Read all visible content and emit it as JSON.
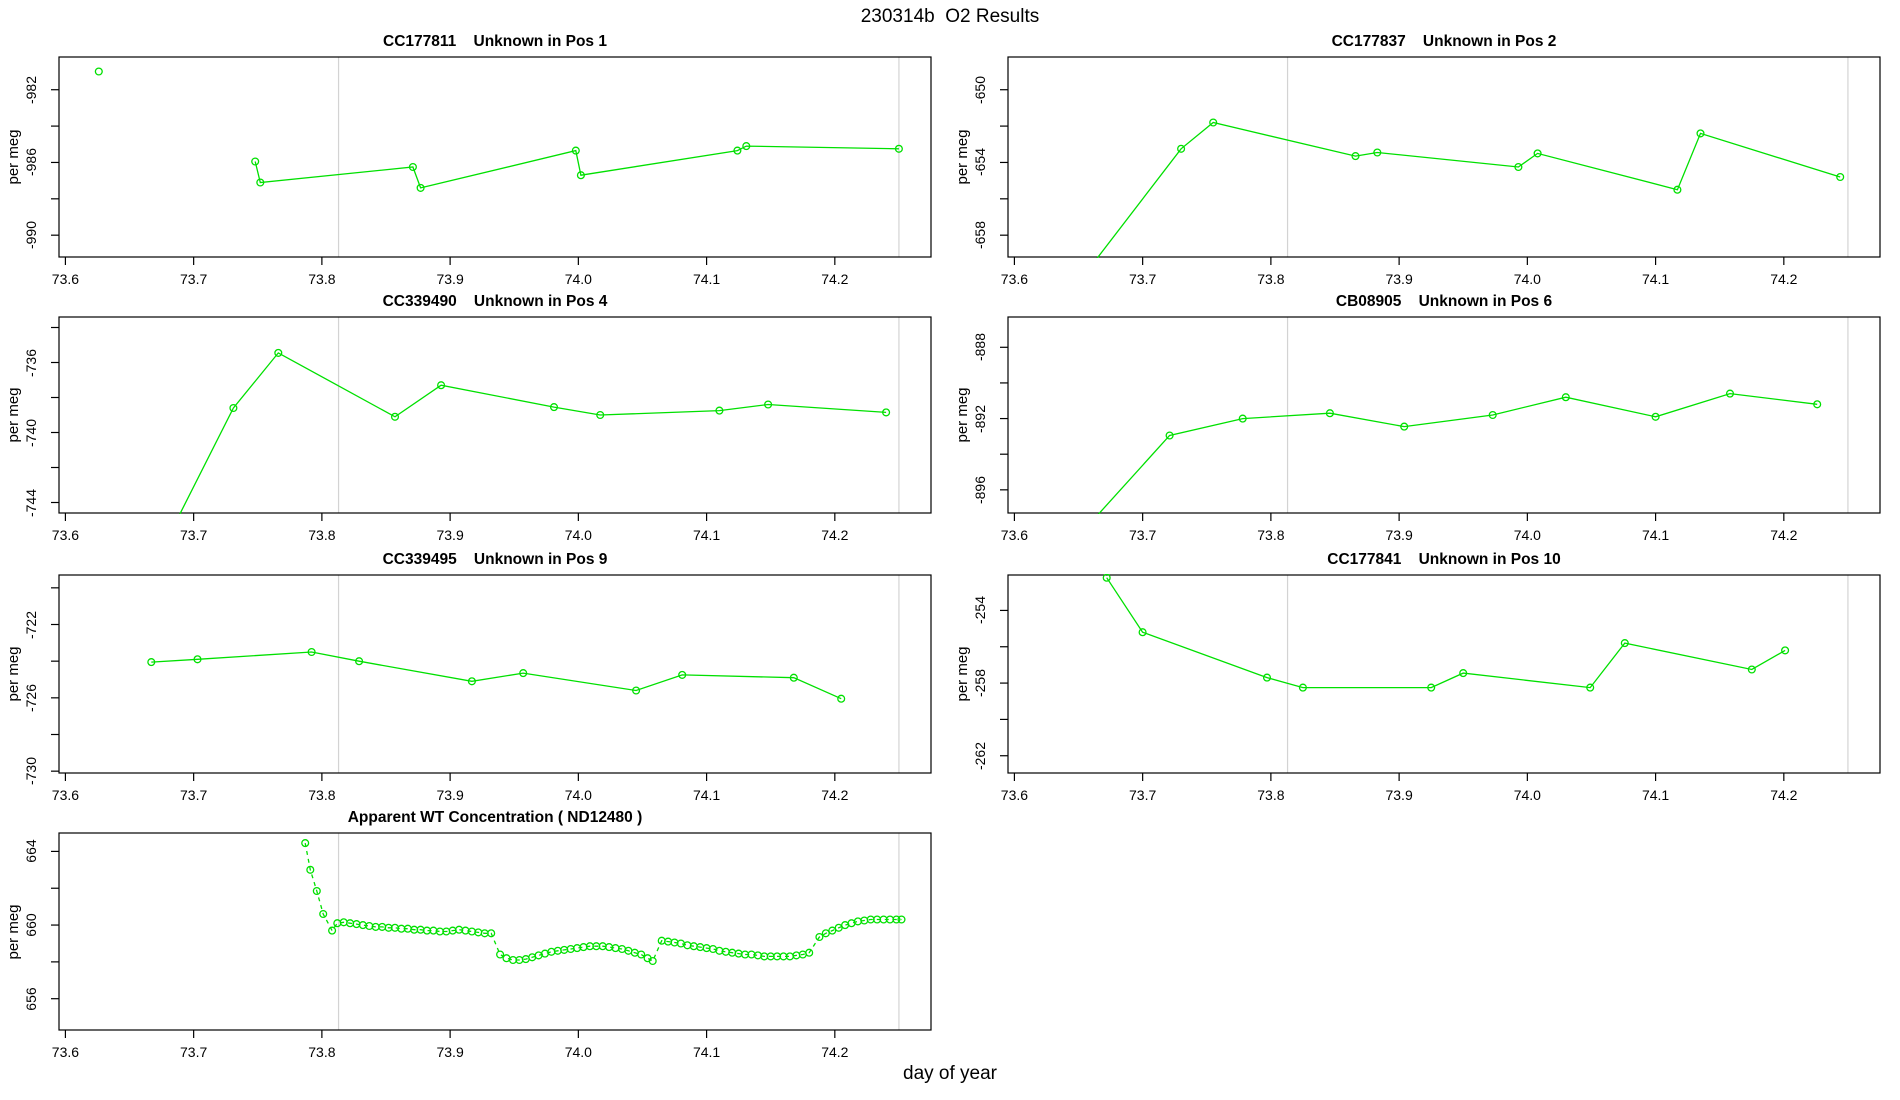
{
  "figure": {
    "title": "230314b  O2 Results",
    "xlabel": "day of year"
  },
  "colors": {
    "series_green": "#00e000",
    "reference_line": "#d3d3d3",
    "axis": "#000000",
    "background": "#ffffff"
  },
  "chart_data": [
    {
      "type": "line",
      "title": "CC177811    Unknown in Pos 1",
      "sample_id": "CC177811",
      "position": "Pos 1",
      "ylabel": "per meg",
      "xlim": [
        73.595,
        74.275
      ],
      "ylim": [
        -991.2,
        -980.2
      ],
      "x_tick_values": [
        73.6,
        73.7,
        73.8,
        73.9,
        74.0,
        74.1,
        74.2
      ],
      "x_tick_labels": [
        "73.6",
        "73.7",
        "73.8",
        "73.9",
        "74.0",
        "74.1",
        "74.2"
      ],
      "y_tick_step": 2,
      "y_tick_labels": [
        -990,
        -986,
        -982
      ],
      "vlines": [
        73.813,
        74.25
      ],
      "dashed": false,
      "isolated_points": [
        [
          73.626,
          -981.0
        ]
      ],
      "points": [
        [
          73.748,
          -985.95
        ],
        [
          73.752,
          -987.1
        ],
        [
          73.871,
          -986.25
        ],
        [
          73.877,
          -987.4
        ],
        [
          73.998,
          -985.35
        ],
        [
          74.002,
          -986.7
        ],
        [
          74.124,
          -985.35
        ],
        [
          74.131,
          -985.1
        ],
        [
          74.25,
          -985.25
        ]
      ]
    },
    {
      "type": "line",
      "title": "CC177837    Unknown in Pos 2",
      "sample_id": "CC177837",
      "position": "Pos 2",
      "ylabel": "per meg",
      "xlim": [
        73.595,
        74.275
      ],
      "ylim": [
        -659.2,
        -648.2
      ],
      "x_tick_values": [
        73.6,
        73.7,
        73.8,
        73.9,
        74.0,
        74.1,
        74.2
      ],
      "x_tick_labels": [
        "73.6",
        "73.7",
        "73.8",
        "73.9",
        "74.0",
        "74.1",
        "74.2"
      ],
      "y_tick_step": 2,
      "y_tick_labels": [
        -658,
        -654,
        -650
      ],
      "vlines": [
        73.813,
        74.25
      ],
      "dashed": false,
      "isolated_points": [],
      "points": [
        [
          73.65,
          -660.6
        ],
        [
          73.73,
          -653.25
        ],
        [
          73.755,
          -651.8
        ],
        [
          73.866,
          -653.65
        ],
        [
          73.883,
          -653.45
        ],
        [
          73.993,
          -654.25
        ],
        [
          74.008,
          -653.5
        ],
        [
          74.117,
          -655.5
        ],
        [
          74.135,
          -652.4
        ],
        [
          74.244,
          -654.8
        ]
      ]
    },
    {
      "type": "line",
      "title": "CC339490    Unknown in Pos 4",
      "sample_id": "CC339490",
      "position": "Pos 4",
      "ylabel": "per meg",
      "xlim": [
        73.595,
        74.275
      ],
      "ylim": [
        -744.6,
        -733.4
      ],
      "x_tick_values": [
        73.6,
        73.7,
        73.8,
        73.9,
        74.0,
        74.1,
        74.2
      ],
      "x_tick_labels": [
        "73.6",
        "73.7",
        "73.8",
        "73.9",
        "74.0",
        "74.1",
        "74.2"
      ],
      "y_tick_step": 2,
      "y_tick_labels": [
        -744,
        -740,
        -736
      ],
      "vlines": [
        73.813,
        74.25
      ],
      "dashed": false,
      "isolated_points": [],
      "points": [
        [
          73.68,
          -746.0
        ],
        [
          73.731,
          -738.6
        ],
        [
          73.766,
          -735.45
        ],
        [
          73.857,
          -739.1
        ],
        [
          73.893,
          -737.3
        ],
        [
          73.981,
          -738.55
        ],
        [
          74.017,
          -739.0
        ],
        [
          74.11,
          -738.75
        ],
        [
          74.148,
          -738.4
        ],
        [
          74.24,
          -738.85
        ]
      ]
    },
    {
      "type": "line",
      "title": "CB08905    Unknown in Pos 6",
      "sample_id": "CB08905",
      "position": "Pos 6",
      "ylabel": "per meg",
      "xlim": [
        73.595,
        74.275
      ],
      "ylim": [
        -897.3,
        -886.3
      ],
      "x_tick_values": [
        73.6,
        73.7,
        73.8,
        73.9,
        74.0,
        74.1,
        74.2
      ],
      "x_tick_labels": [
        "73.6",
        "73.7",
        "73.8",
        "73.9",
        "74.0",
        "74.1",
        "74.2"
      ],
      "y_tick_step": 2,
      "y_tick_labels": [
        -896,
        -892,
        -888
      ],
      "vlines": [
        73.813,
        74.25
      ],
      "dashed": false,
      "isolated_points": [],
      "points": [
        [
          73.65,
          -898.6
        ],
        [
          73.721,
          -892.95
        ],
        [
          73.778,
          -892.0
        ],
        [
          73.846,
          -891.7
        ],
        [
          73.904,
          -892.45
        ],
        [
          73.973,
          -891.8
        ],
        [
          74.03,
          -890.8
        ],
        [
          74.1,
          -891.9
        ],
        [
          74.158,
          -890.6
        ],
        [
          74.226,
          -891.2
        ]
      ]
    },
    {
      "type": "line",
      "title": "CC339495    Unknown in Pos 9",
      "sample_id": "CC339495",
      "position": "Pos 9",
      "ylabel": "per meg",
      "xlim": [
        73.595,
        74.275
      ],
      "ylim": [
        -730.1,
        -719.3
      ],
      "x_tick_values": [
        73.6,
        73.7,
        73.8,
        73.9,
        74.0,
        74.1,
        74.2
      ],
      "x_tick_labels": [
        "73.6",
        "73.7",
        "73.8",
        "73.9",
        "74.0",
        "74.1",
        "74.2"
      ],
      "y_tick_step": 2,
      "y_tick_labels": [
        -730,
        -726,
        -722
      ],
      "vlines": [
        73.813,
        74.25
      ],
      "dashed": false,
      "isolated_points": [],
      "points": [
        [
          73.667,
          -724.05
        ],
        [
          73.703,
          -723.9
        ],
        [
          73.792,
          -723.5
        ],
        [
          73.829,
          -724.0
        ],
        [
          73.917,
          -725.1
        ],
        [
          73.957,
          -724.65
        ],
        [
          74.045,
          -725.6
        ],
        [
          74.081,
          -724.75
        ],
        [
          74.168,
          -724.9
        ],
        [
          74.205,
          -726.05
        ]
      ]
    },
    {
      "type": "line",
      "title": "CC177841    Unknown in Pos 10",
      "sample_id": "CC177841",
      "position": "Pos 10",
      "ylabel": "per meg",
      "xlim": [
        73.595,
        74.275
      ],
      "ylim": [
        -262.95,
        -252.05
      ],
      "x_tick_values": [
        73.6,
        73.7,
        73.8,
        73.9,
        74.0,
        74.1,
        74.2
      ],
      "x_tick_labels": [
        "73.6",
        "73.7",
        "73.8",
        "73.9",
        "74.0",
        "74.1",
        "74.2"
      ],
      "y_tick_step": 2,
      "y_tick_labels": [
        -262,
        -258,
        -254
      ],
      "vlines": [
        73.813,
        74.25
      ],
      "dashed": false,
      "isolated_points": [],
      "points": [
        [
          73.672,
          -252.2
        ],
        [
          73.7,
          -255.2
        ],
        [
          73.797,
          -257.7
        ],
        [
          73.825,
          -258.25
        ],
        [
          73.925,
          -258.25
        ],
        [
          73.95,
          -257.45
        ],
        [
          74.049,
          -258.25
        ],
        [
          74.076,
          -255.8
        ],
        [
          74.175,
          -257.25
        ],
        [
          74.201,
          -256.2
        ]
      ]
    },
    {
      "type": "line",
      "title": "Apparent WT Concentration ( ND12480 )",
      "sample_id": "ND12480",
      "position": "WT",
      "ylabel": "per meg",
      "xlim": [
        73.595,
        74.275
      ],
      "ylim": [
        654.3,
        665.0
      ],
      "x_tick_values": [
        73.6,
        73.7,
        73.8,
        73.9,
        74.0,
        74.1,
        74.2
      ],
      "x_tick_labels": [
        "73.6",
        "73.7",
        "73.8",
        "73.9",
        "74.0",
        "74.1",
        "74.2"
      ],
      "y_tick_step": 2,
      "y_tick_labels": [
        656,
        660,
        664
      ],
      "vlines": [
        73.813,
        74.25
      ],
      "dashed": true,
      "isolated_points": [],
      "points": [
        [
          73.787,
          664.45
        ],
        [
          73.791,
          663.0
        ],
        [
          73.796,
          661.85
        ],
        [
          73.801,
          660.6
        ],
        [
          73.808,
          659.7
        ],
        [
          73.812,
          660.1
        ],
        [
          73.817,
          660.15
        ],
        [
          73.822,
          660.1
        ],
        [
          73.827,
          660.05
        ],
        [
          73.832,
          660.0
        ],
        [
          73.837,
          659.95
        ],
        [
          73.842,
          659.9
        ],
        [
          73.847,
          659.9
        ],
        [
          73.852,
          659.85
        ],
        [
          73.857,
          659.85
        ],
        [
          73.862,
          659.8
        ],
        [
          73.867,
          659.8
        ],
        [
          73.872,
          659.75
        ],
        [
          73.877,
          659.75
        ],
        [
          73.882,
          659.7
        ],
        [
          73.887,
          659.7
        ],
        [
          73.892,
          659.65
        ],
        [
          73.897,
          659.65
        ],
        [
          73.902,
          659.7
        ],
        [
          73.907,
          659.75
        ],
        [
          73.912,
          659.7
        ],
        [
          73.917,
          659.65
        ],
        [
          73.922,
          659.6
        ],
        [
          73.927,
          659.55
        ],
        [
          73.932,
          659.55
        ],
        [
          73.939,
          658.4
        ],
        [
          73.944,
          658.2
        ],
        [
          73.949,
          658.1
        ],
        [
          73.954,
          658.1
        ],
        [
          73.959,
          658.15
        ],
        [
          73.964,
          658.25
        ],
        [
          73.969,
          658.35
        ],
        [
          73.974,
          658.45
        ],
        [
          73.979,
          658.55
        ],
        [
          73.984,
          658.6
        ],
        [
          73.989,
          658.65
        ],
        [
          73.994,
          658.7
        ],
        [
          73.999,
          658.75
        ],
        [
          74.004,
          658.8
        ],
        [
          74.009,
          658.85
        ],
        [
          74.014,
          658.85
        ],
        [
          74.019,
          658.85
        ],
        [
          74.024,
          658.8
        ],
        [
          74.029,
          658.75
        ],
        [
          74.034,
          658.7
        ],
        [
          74.039,
          658.6
        ],
        [
          74.044,
          658.5
        ],
        [
          74.049,
          658.4
        ],
        [
          74.054,
          658.2
        ],
        [
          74.058,
          658.05
        ],
        [
          74.065,
          659.15
        ],
        [
          74.07,
          659.1
        ],
        [
          74.075,
          659.05
        ],
        [
          74.08,
          659.0
        ],
        [
          74.085,
          658.9
        ],
        [
          74.09,
          658.85
        ],
        [
          74.095,
          658.8
        ],
        [
          74.1,
          658.75
        ],
        [
          74.105,
          658.7
        ],
        [
          74.11,
          658.6
        ],
        [
          74.115,
          658.55
        ],
        [
          74.12,
          658.5
        ],
        [
          74.125,
          658.45
        ],
        [
          74.13,
          658.4
        ],
        [
          74.135,
          658.4
        ],
        [
          74.14,
          658.35
        ],
        [
          74.145,
          658.3
        ],
        [
          74.15,
          658.3
        ],
        [
          74.155,
          658.3
        ],
        [
          74.16,
          658.3
        ],
        [
          74.165,
          658.3
        ],
        [
          74.17,
          658.35
        ],
        [
          74.175,
          658.4
        ],
        [
          74.18,
          658.5
        ],
        [
          74.188,
          659.35
        ],
        [
          74.193,
          659.55
        ],
        [
          74.198,
          659.7
        ],
        [
          74.203,
          659.85
        ],
        [
          74.208,
          660.0
        ],
        [
          74.213,
          660.1
        ],
        [
          74.218,
          660.2
        ],
        [
          74.223,
          660.25
        ],
        [
          74.228,
          660.3
        ],
        [
          74.233,
          660.3
        ],
        [
          74.238,
          660.3
        ],
        [
          74.243,
          660.3
        ],
        [
          74.248,
          660.3
        ],
        [
          74.252,
          660.3
        ]
      ]
    }
  ]
}
